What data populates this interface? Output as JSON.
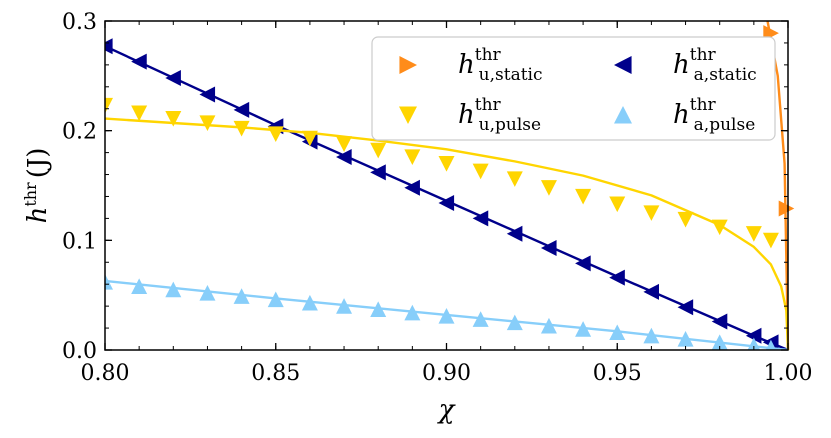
{
  "chart_data": {
    "type": "line",
    "xlabel": "χ",
    "ylabel": {
      "main": "h",
      "sup": "thr",
      "unit": "(J)"
    },
    "xlim": [
      0.8,
      1.0
    ],
    "ylim": [
      0.0,
      0.3
    ],
    "xticks": [
      0.8,
      0.85,
      0.9,
      0.95,
      1.0
    ],
    "xtick_labels": [
      "0.80",
      "0.85",
      "0.90",
      "0.95",
      "1.00"
    ],
    "yticks": [
      0.0,
      0.1,
      0.2,
      0.3
    ],
    "ytick_labels": [
      "0.0",
      "0.1",
      "0.2",
      "0.3"
    ],
    "legend_position": "top-right",
    "series": [
      {
        "name": "h_u,static^thr",
        "label_main": "h",
        "label_sup": "thr",
        "label_sub": "u,static",
        "color": "#ff8c1a",
        "marker": "triangle-right",
        "points": [
          [
            0.995,
            0.289
          ],
          [
            0.9995,
            0.129
          ]
        ],
        "curve": [
          [
            0.994,
            0.3
          ],
          [
            0.997,
            0.25
          ],
          [
            0.999,
            0.17
          ],
          [
            1.0,
            0.0
          ]
        ]
      },
      {
        "name": "h_a,static^thr",
        "label_main": "h",
        "label_sup": "thr",
        "label_sub": "a,static",
        "color": "#00008b",
        "marker": "triangle-left",
        "points": [
          [
            0.8,
            0.277
          ],
          [
            0.81,
            0.263
          ],
          [
            0.82,
            0.248
          ],
          [
            0.83,
            0.233
          ],
          [
            0.84,
            0.219
          ],
          [
            0.85,
            0.204
          ],
          [
            0.86,
            0.19
          ],
          [
            0.87,
            0.176
          ],
          [
            0.88,
            0.162
          ],
          [
            0.89,
            0.148
          ],
          [
            0.9,
            0.134
          ],
          [
            0.91,
            0.12
          ],
          [
            0.92,
            0.106
          ],
          [
            0.93,
            0.093
          ],
          [
            0.94,
            0.079
          ],
          [
            0.95,
            0.066
          ],
          [
            0.96,
            0.053
          ],
          [
            0.97,
            0.039
          ],
          [
            0.98,
            0.026
          ],
          [
            0.99,
            0.013
          ],
          [
            0.995,
            0.007
          ]
        ],
        "curve": [
          [
            0.8,
            0.277
          ],
          [
            0.85,
            0.205
          ],
          [
            0.9,
            0.136
          ],
          [
            0.95,
            0.067
          ],
          [
            0.99,
            0.013
          ],
          [
            1.0,
            0.0
          ]
        ]
      },
      {
        "name": "h_u,pulse^thr",
        "label_main": "h",
        "label_sup": "thr",
        "label_sub": "u,pulse",
        "color": "#ffd500",
        "marker": "triangle-down",
        "points": [
          [
            0.8,
            0.223
          ],
          [
            0.81,
            0.216
          ],
          [
            0.82,
            0.211
          ],
          [
            0.83,
            0.207
          ],
          [
            0.84,
            0.202
          ],
          [
            0.85,
            0.197
          ],
          [
            0.86,
            0.193
          ],
          [
            0.87,
            0.188
          ],
          [
            0.88,
            0.182
          ],
          [
            0.89,
            0.176
          ],
          [
            0.9,
            0.17
          ],
          [
            0.91,
            0.163
          ],
          [
            0.92,
            0.156
          ],
          [
            0.93,
            0.148
          ],
          [
            0.94,
            0.14
          ],
          [
            0.95,
            0.133
          ],
          [
            0.96,
            0.125
          ],
          [
            0.97,
            0.119
          ],
          [
            0.98,
            0.112
          ],
          [
            0.99,
            0.106
          ],
          [
            0.995,
            0.1
          ]
        ],
        "curve": [
          [
            0.8,
            0.211
          ],
          [
            0.82,
            0.207
          ],
          [
            0.84,
            0.203
          ],
          [
            0.86,
            0.198
          ],
          [
            0.88,
            0.191
          ],
          [
            0.9,
            0.183
          ],
          [
            0.92,
            0.172
          ],
          [
            0.94,
            0.159
          ],
          [
            0.96,
            0.141
          ],
          [
            0.98,
            0.114
          ],
          [
            0.99,
            0.094
          ],
          [
            0.995,
            0.078
          ],
          [
            0.998,
            0.058
          ],
          [
            0.9995,
            0.036
          ],
          [
            1.0,
            0.0
          ]
        ]
      },
      {
        "name": "h_a,pulse^thr",
        "label_main": "h",
        "label_sup": "thr",
        "label_sub": "a,pulse",
        "color": "#87cefa",
        "marker": "triangle-up",
        "points": [
          [
            0.8,
            0.062
          ],
          [
            0.81,
            0.058
          ],
          [
            0.82,
            0.055
          ],
          [
            0.83,
            0.052
          ],
          [
            0.84,
            0.049
          ],
          [
            0.85,
            0.046
          ],
          [
            0.86,
            0.043
          ],
          [
            0.87,
            0.04
          ],
          [
            0.88,
            0.037
          ],
          [
            0.89,
            0.034
          ],
          [
            0.9,
            0.031
          ],
          [
            0.91,
            0.028
          ],
          [
            0.92,
            0.025
          ],
          [
            0.93,
            0.022
          ],
          [
            0.94,
            0.019
          ],
          [
            0.95,
            0.016
          ],
          [
            0.96,
            0.013
          ],
          [
            0.97,
            0.01
          ],
          [
            0.98,
            0.007
          ],
          [
            0.99,
            0.004
          ],
          [
            0.995,
            0.002
          ]
        ],
        "curve": [
          [
            0.8,
            0.063
          ],
          [
            0.85,
            0.047
          ],
          [
            0.9,
            0.032
          ],
          [
            0.95,
            0.017
          ],
          [
            1.0,
            0.0
          ]
        ]
      }
    ]
  }
}
